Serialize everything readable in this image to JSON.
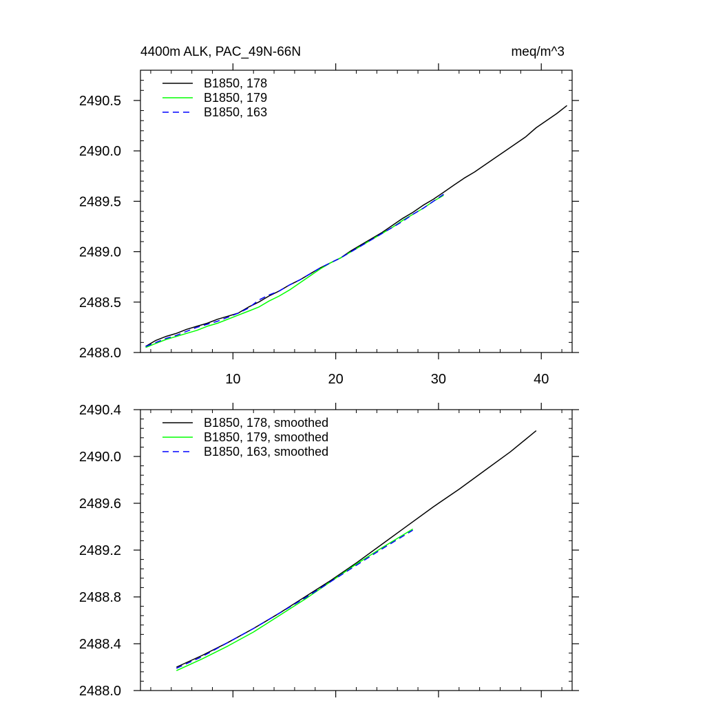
{
  "chart_data": [
    {
      "type": "line",
      "title": "4400m ALK, PAC_49N-66N",
      "units": "meq/m^3",
      "xlim": [
        1,
        43
      ],
      "ylim": [
        2488.0,
        2490.8
      ],
      "xticks": [
        10,
        20,
        30,
        40
      ],
      "xtick_labels": [
        "10",
        "20",
        "30",
        "40"
      ],
      "yticks": [
        2488.0,
        2488.5,
        2489.0,
        2489.5,
        2490.0,
        2490.5
      ],
      "ytick_labels": [
        "2488.0",
        "2488.5",
        "2489.0",
        "2489.5",
        "2490.0",
        "2490.5"
      ],
      "legend_position": "top-left",
      "series": [
        {
          "name": "B1850, 178",
          "color": "#000000",
          "dash": "solid",
          "x": [
            1.5,
            2.5,
            3.5,
            4.5,
            5.5,
            6.5,
            7.5,
            8.5,
            9.5,
            10.5,
            11.5,
            12.5,
            13.5,
            14.5,
            15.5,
            16.5,
            17.5,
            18.5,
            19.5,
            20.5,
            21.5,
            22.5,
            23.5,
            24.5,
            25.5,
            26.5,
            27.5,
            28.5,
            29.5,
            30.5,
            31.5,
            32.5,
            33.5,
            34.5,
            35.5,
            36.5,
            37.5,
            38.5,
            39.5,
            40.5,
            41.5,
            42.5
          ],
          "y": [
            2488.06,
            2488.12,
            2488.16,
            2488.19,
            2488.23,
            2488.26,
            2488.29,
            2488.33,
            2488.36,
            2488.39,
            2488.45,
            2488.5,
            2488.56,
            2488.61,
            2488.67,
            2488.72,
            2488.78,
            2488.84,
            2488.89,
            2488.94,
            2489.01,
            2489.07,
            2489.13,
            2489.19,
            2489.26,
            2489.33,
            2489.39,
            2489.46,
            2489.52,
            2489.59,
            2489.66,
            2489.73,
            2489.79,
            2489.86,
            2489.93,
            2490.0,
            2490.07,
            2490.14,
            2490.23,
            2490.3,
            2490.37,
            2490.45
          ]
        },
        {
          "name": "B1850, 179",
          "color": "#00ff00",
          "dash": "solid",
          "x": [
            1.5,
            2.5,
            3.5,
            4.5,
            5.5,
            6.5,
            7.5,
            8.5,
            9.5,
            10.5,
            11.5,
            12.5,
            13.5,
            14.5,
            15.5,
            16.5,
            17.5,
            18.5,
            19.5,
            20.5,
            21.5,
            22.5,
            23.5,
            24.5,
            25.5,
            26.5,
            27.5,
            28.5,
            29.5,
            30.5
          ],
          "y": [
            2488.05,
            2488.09,
            2488.13,
            2488.16,
            2488.19,
            2488.22,
            2488.26,
            2488.29,
            2488.33,
            2488.37,
            2488.41,
            2488.45,
            2488.51,
            2488.56,
            2488.62,
            2488.69,
            2488.76,
            2488.83,
            2488.89,
            2488.94,
            2489.0,
            2489.06,
            2489.12,
            2489.18,
            2489.24,
            2489.31,
            2489.37,
            2489.43,
            2489.5,
            2489.56
          ]
        },
        {
          "name": "B1850, 163",
          "color": "#0000ff",
          "dash": "dashed",
          "x": [
            1.5,
            2.5,
            3.5,
            4.5,
            5.5,
            6.5,
            7.5,
            8.5,
            9.5,
            10.5,
            11.5,
            12.5,
            13.5,
            14.5,
            15.5,
            16.5,
            17.5,
            18.5,
            19.5,
            20.5,
            21.5,
            22.5,
            23.5,
            24.5,
            25.5,
            26.5,
            27.5,
            28.5,
            29.5,
            30.5
          ],
          "y": [
            2488.06,
            2488.1,
            2488.14,
            2488.17,
            2488.21,
            2488.25,
            2488.28,
            2488.31,
            2488.35,
            2488.39,
            2488.44,
            2488.52,
            2488.57,
            2488.61,
            2488.67,
            2488.72,
            2488.78,
            2488.84,
            2488.89,
            2488.94,
            2489.0,
            2489.06,
            2489.12,
            2489.18,
            2489.24,
            2489.3,
            2489.37,
            2489.43,
            2489.5,
            2489.57
          ]
        }
      ]
    },
    {
      "type": "line",
      "xlim": [
        1,
        43
      ],
      "ylim": [
        2488.0,
        2490.4
      ],
      "xticks": [
        10,
        20,
        30,
        40
      ],
      "yticks": [
        2488.0,
        2488.4,
        2488.8,
        2489.2,
        2489.6,
        2490.0,
        2490.4
      ],
      "ytick_labels": [
        "2488.0",
        "2488.4",
        "2488.8",
        "2489.2",
        "2489.6",
        "2490.0",
        "2490.4"
      ],
      "legend_position": "top-left",
      "series": [
        {
          "name": "B1850, 178, smoothed",
          "color": "#000000",
          "dash": "solid",
          "x": [
            4.5,
            7,
            9.5,
            12,
            14.5,
            17,
            19.5,
            22,
            24.5,
            27,
            29.5,
            32,
            34.5,
            37,
            39.5
          ],
          "y": [
            2488.2,
            2488.3,
            2488.41,
            2488.53,
            2488.66,
            2488.8,
            2488.94,
            2489.09,
            2489.25,
            2489.41,
            2489.57,
            2489.72,
            2489.88,
            2490.04,
            2490.22
          ]
        },
        {
          "name": "B1850, 179, smoothed",
          "color": "#00ff00",
          "dash": "solid",
          "x": [
            4.5,
            7,
            9.5,
            12,
            14.5,
            17,
            19.5,
            22,
            24.5,
            27.5
          ],
          "y": [
            2488.17,
            2488.27,
            2488.38,
            2488.5,
            2488.64,
            2488.78,
            2488.93,
            2489.08,
            2489.22,
            2489.38
          ]
        },
        {
          "name": "B1850, 163, smoothed",
          "color": "#0000ff",
          "dash": "dashed",
          "x": [
            4.5,
            7,
            9.5,
            12,
            14.5,
            17,
            19.5,
            22,
            24.5,
            27.5
          ],
          "y": [
            2488.19,
            2488.29,
            2488.41,
            2488.53,
            2488.66,
            2488.79,
            2488.93,
            2489.07,
            2489.21,
            2489.37
          ]
        }
      ]
    }
  ]
}
